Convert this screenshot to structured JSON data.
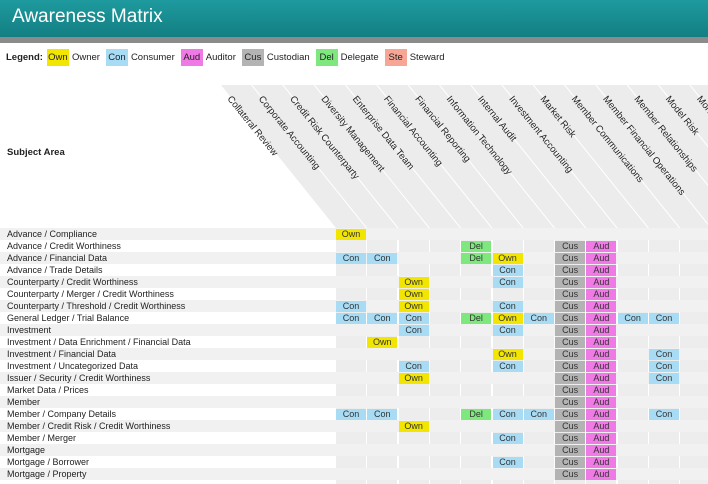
{
  "app": {
    "title": "Awareness Matrix"
  },
  "legend": {
    "title": "Legend:",
    "items": [
      {
        "code": "Own",
        "label": "Owner",
        "color": "#f2e600"
      },
      {
        "code": "Con",
        "label": "Consumer",
        "color": "#a8dcf5"
      },
      {
        "code": "Aud",
        "label": "Auditor",
        "color": "#ef7ae6"
      },
      {
        "code": "Cus",
        "label": "Custodian",
        "color": "#b3b3b3"
      },
      {
        "code": "Del",
        "label": "Delegate",
        "color": "#7ee87e"
      },
      {
        "code": "Ste",
        "label": "Steward",
        "color": "#f7a595"
      }
    ]
  },
  "subject_area_label": "Subject Area",
  "columns": [
    "Collateral Review",
    "Corporate Accounting",
    "Credit Risk Counterparty",
    "Diversity Management",
    "Enterprise Data Team",
    "Financial Accounting",
    "Financial Reporting",
    "Information Technology",
    "Internal Audit",
    "Investment Accounting",
    "Market Risk",
    "Member Communications",
    "Member Financial Operations",
    "Member Relationships",
    "Model Risk",
    "Mortgage"
  ],
  "rows": [
    {
      "label": "Advance / Compliance",
      "cells": {
        "0": "Own"
      }
    },
    {
      "label": "Advance / Credit Worthiness",
      "cells": {
        "4": "Del",
        "7": "Cus",
        "8": "Aud"
      }
    },
    {
      "label": "Advance / Financial Data",
      "cells": {
        "0": "Con",
        "1": "Con",
        "4": "Del",
        "5": "Own",
        "7": "Cus",
        "8": "Aud"
      }
    },
    {
      "label": "Advance / Trade Details",
      "cells": {
        "5": "Con",
        "7": "Cus",
        "8": "Aud"
      }
    },
    {
      "label": "Counterparty / Credit Worthiness",
      "cells": {
        "2": "Own",
        "5": "Con",
        "7": "Cus",
        "8": "Aud"
      }
    },
    {
      "label": "Counterparty / Merger / Credit Worthiness",
      "cells": {
        "2": "Own",
        "7": "Cus",
        "8": "Aud"
      }
    },
    {
      "label": "Counterparty / Threshold / Credit Worthiness",
      "cells": {
        "0": "Con",
        "2": "Own",
        "5": "Con",
        "7": "Cus",
        "8": "Aud"
      }
    },
    {
      "label": "General Ledger / Trial Balance",
      "cells": {
        "0": "Con",
        "1": "Con",
        "2": "Con",
        "4": "Del",
        "5": "Own",
        "6": "Con",
        "7": "Cus",
        "8": "Aud",
        "9": "Con",
        "10": "Con"
      }
    },
    {
      "label": "Investment",
      "cells": {
        "2": "Con",
        "5": "Con",
        "7": "Cus",
        "8": "Aud",
        "11": "Con"
      }
    },
    {
      "label": "Investment / Data Enrichment / Financial Data",
      "cells": {
        "1": "Own",
        "7": "Cus",
        "8": "Aud"
      }
    },
    {
      "label": "Investment / Financial Data",
      "cells": {
        "5": "Own",
        "7": "Cus",
        "8": "Aud",
        "10": "Con"
      }
    },
    {
      "label": "Investment / Uncategorized Data",
      "cells": {
        "2": "Con",
        "5": "Con",
        "7": "Cus",
        "8": "Aud",
        "10": "Con"
      }
    },
    {
      "label": "Issuer / Security / Credit Worthiness",
      "cells": {
        "2": "Own",
        "7": "Cus",
        "8": "Aud",
        "10": "Con"
      }
    },
    {
      "label": "Market Data / Prices",
      "cells": {
        "7": "Cus",
        "8": "Aud"
      }
    },
    {
      "label": "Member",
      "cells": {
        "7": "Cus",
        "8": "Aud",
        "11": "Con"
      }
    },
    {
      "label": "Member / Company Details",
      "cells": {
        "0": "Con",
        "1": "Con",
        "4": "Del",
        "5": "Con",
        "6": "Con",
        "7": "Cus",
        "8": "Aud",
        "10": "Con"
      }
    },
    {
      "label": "Member / Credit Risk / Credit Worthiness",
      "cells": {
        "2": "Own",
        "7": "Cus",
        "8": "Aud"
      }
    },
    {
      "label": "Member / Merger",
      "cells": {
        "5": "Con",
        "7": "Cus",
        "8": "Aud"
      }
    },
    {
      "label": "Mortgage",
      "cells": {
        "7": "Cus",
        "8": "Aud"
      }
    },
    {
      "label": "Mortgage / Borrower",
      "cells": {
        "5": "Con",
        "7": "Cus",
        "8": "Aud"
      }
    },
    {
      "label": "Mortgage / Property",
      "cells": {
        "7": "Cus",
        "8": "Aud"
      }
    }
  ]
}
